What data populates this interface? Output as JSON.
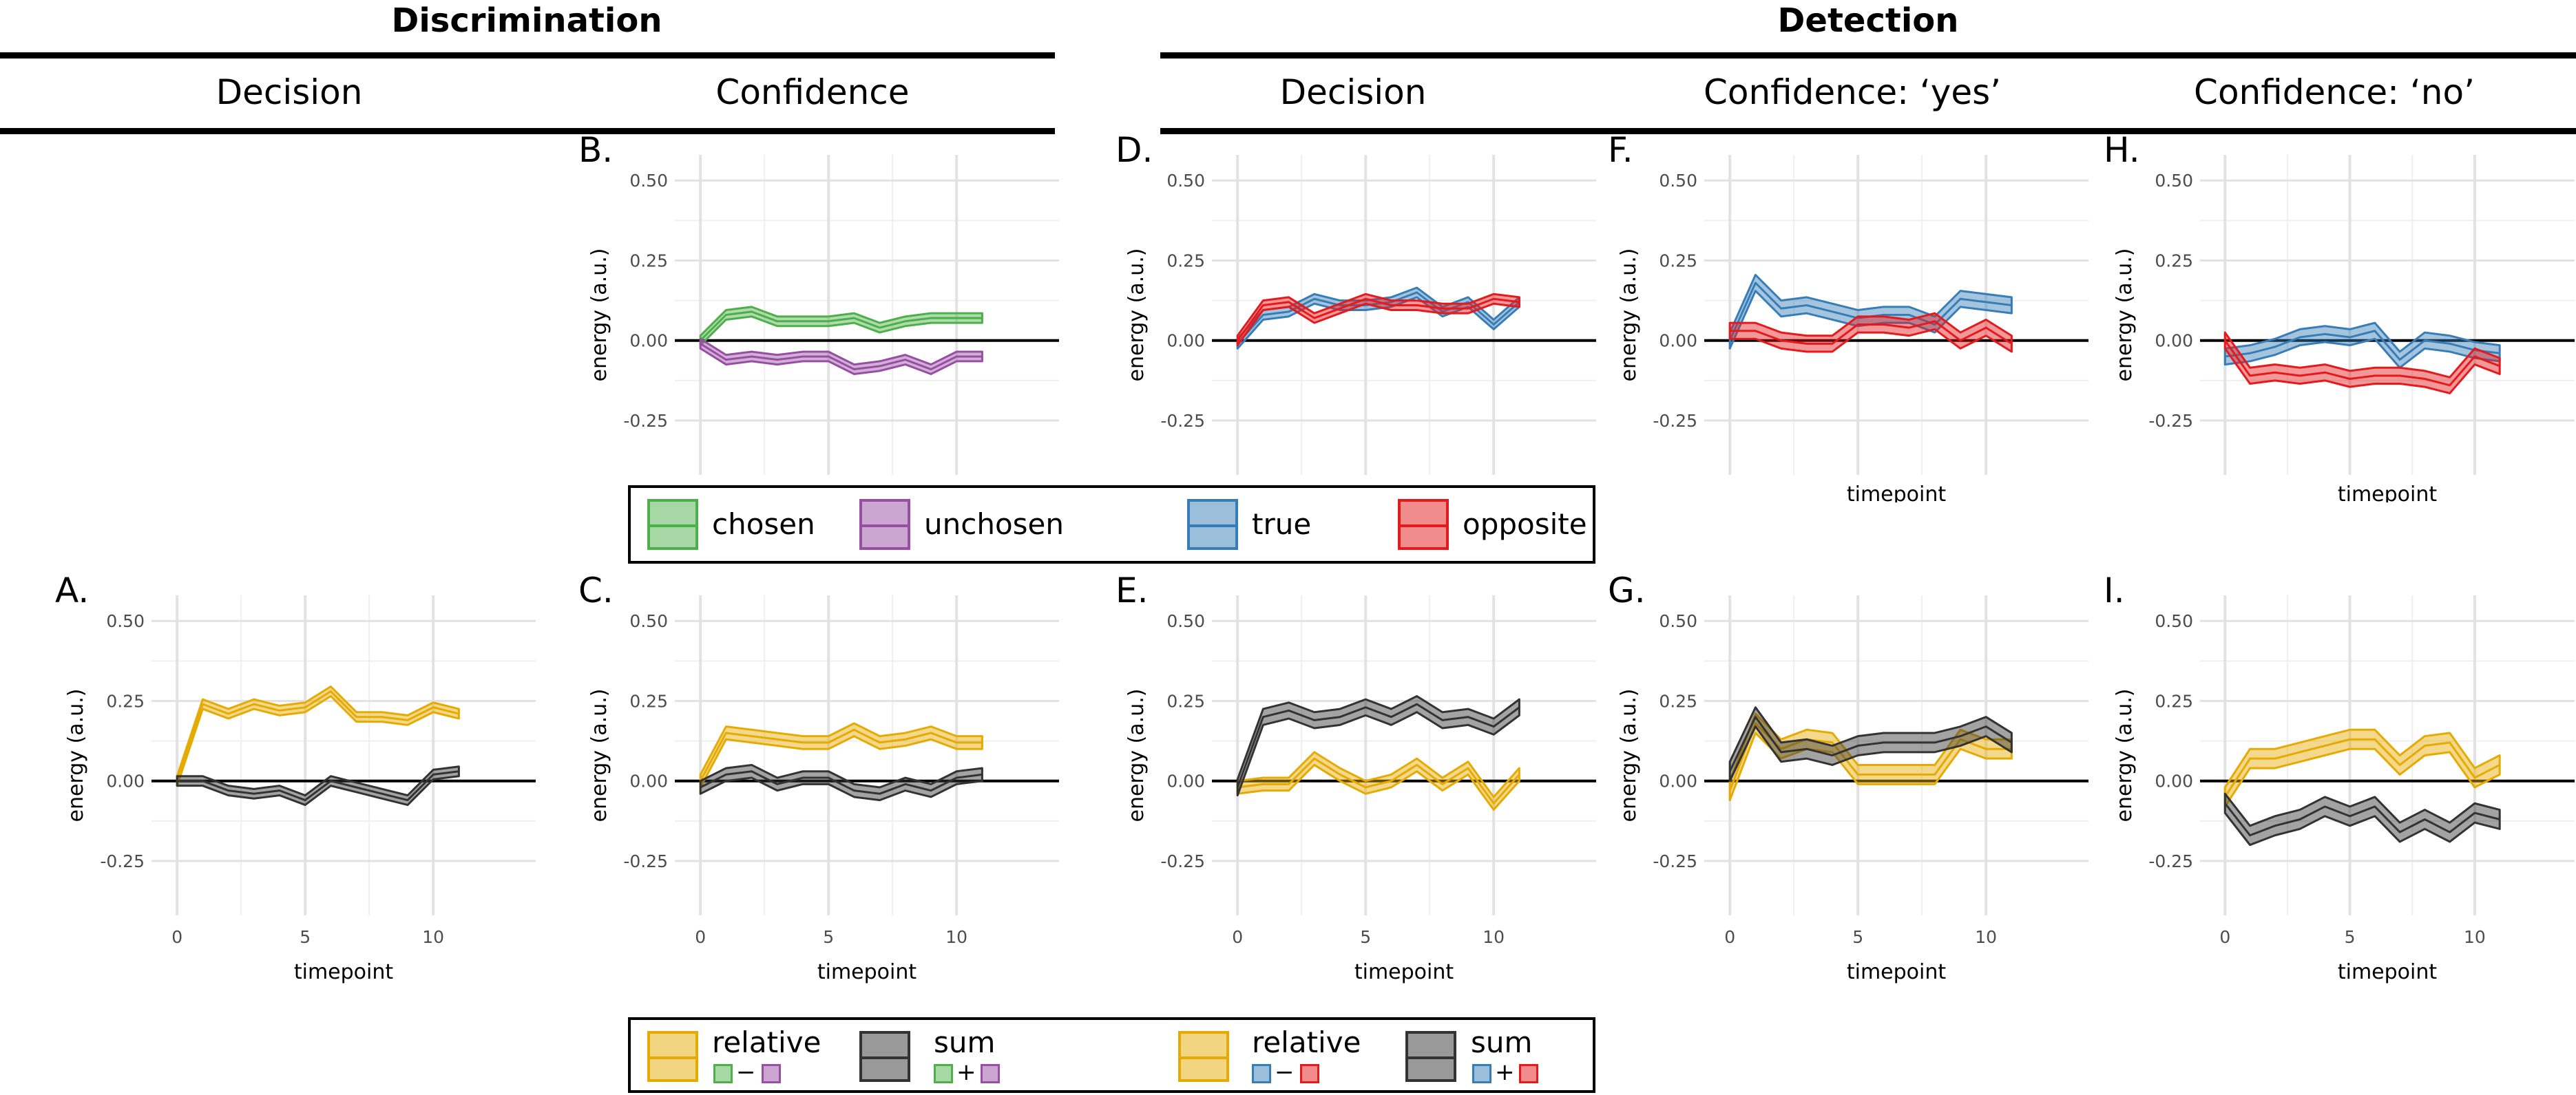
{
  "headers": {
    "discrimination": "Discrimination",
    "detection": "Detection",
    "columns": [
      "Decision",
      "Confidence",
      "Decision",
      "Confidence: ‘yes’",
      "Confidence: ‘no’"
    ]
  },
  "colors": {
    "chosen": "#4daf4a",
    "unchosen": "#984ea3",
    "true": "#377eb8",
    "opposite": "#e41a1c",
    "relative": "#e6ab02",
    "sum": "#333333"
  },
  "legends": {
    "top": [
      {
        "label": "chosen",
        "color": "#4daf4a"
      },
      {
        "label": "unchosen",
        "color": "#984ea3"
      },
      {
        "label": "true",
        "color": "#377eb8"
      },
      {
        "label": "opposite",
        "color": "#e41a1c"
      }
    ],
    "bottom": [
      {
        "label": "relative",
        "color": "#e6ab02",
        "formula": {
          "left": "#4daf4a",
          "op": "−",
          "right": "#984ea3"
        }
      },
      {
        "label": "sum",
        "color": "#333333",
        "formula": {
          "left": "#4daf4a",
          "op": "+",
          "right": "#984ea3"
        }
      },
      {
        "label": "relative",
        "color": "#e6ab02",
        "formula": {
          "left": "#377eb8",
          "op": "−",
          "right": "#e41a1c"
        }
      },
      {
        "label": "sum",
        "color": "#333333",
        "formula": {
          "left": "#377eb8",
          "op": "+",
          "right": "#e41a1c"
        }
      }
    ]
  },
  "chart_data": [
    {
      "panel": "A.",
      "type": "line",
      "ylabel": "energy (a.u.)",
      "xlabel": "timepoint",
      "ylim": [
        -0.42,
        0.58
      ],
      "xlim": [
        -1,
        14
      ],
      "yticks": [
        -0.25,
        0,
        0.25,
        0.5
      ],
      "ytick_labels": [
        "-0.25",
        "0.00",
        "0.25",
        "0.50"
      ],
      "xticks": [
        0,
        5,
        10
      ],
      "xtick_labels": [
        "0",
        "5",
        "10"
      ],
      "hline": 0,
      "show_x_axis": true,
      "series": [
        {
          "key": "relative",
          "x": [
            0,
            1,
            2,
            3,
            4,
            5,
            6,
            7,
            8,
            9,
            10,
            11
          ],
          "values": [
            0.0,
            0.24,
            0.21,
            0.24,
            0.22,
            0.23,
            0.28,
            0.2,
            0.2,
            0.19,
            0.23,
            0.21
          ],
          "band": 0.015
        },
        {
          "key": "sum",
          "x": [
            0,
            1,
            2,
            3,
            4,
            5,
            6,
            7,
            8,
            9,
            10,
            11
          ],
          "values": [
            0.0,
            0.0,
            -0.03,
            -0.04,
            -0.03,
            -0.06,
            0.0,
            -0.02,
            -0.04,
            -0.06,
            0.02,
            0.03
          ],
          "band": 0.015
        }
      ]
    },
    {
      "panel": "B.",
      "type": "line",
      "ylabel": "energy (a.u.)",
      "xlabel": "",
      "ylim": [
        -0.42,
        0.58
      ],
      "xlim": [
        -1,
        14
      ],
      "yticks": [
        -0.25,
        0,
        0.25,
        0.5
      ],
      "ytick_labels": [
        "-0.25",
        "0.00",
        "0.25",
        "0.50"
      ],
      "xticks": [
        0,
        5,
        10
      ],
      "xtick_labels": [
        "",
        "",
        ""
      ],
      "hline": 0,
      "show_x_axis": false,
      "series": [
        {
          "key": "chosen",
          "x": [
            0,
            1,
            2,
            3,
            4,
            5,
            6,
            7,
            8,
            9,
            10,
            11
          ],
          "values": [
            0.0,
            0.08,
            0.09,
            0.06,
            0.06,
            0.06,
            0.07,
            0.04,
            0.06,
            0.07,
            0.07,
            0.07
          ],
          "band": 0.015
        },
        {
          "key": "unchosen",
          "x": [
            0,
            1,
            2,
            3,
            4,
            5,
            6,
            7,
            8,
            9,
            10,
            11
          ],
          "values": [
            -0.01,
            -0.06,
            -0.05,
            -0.06,
            -0.05,
            -0.05,
            -0.09,
            -0.08,
            -0.06,
            -0.09,
            -0.05,
            -0.05
          ],
          "band": 0.015
        }
      ]
    },
    {
      "panel": "C.",
      "type": "line",
      "ylabel": "energy (a.u.)",
      "xlabel": "timepoint",
      "ylim": [
        -0.42,
        0.58
      ],
      "xlim": [
        -1,
        14
      ],
      "yticks": [
        -0.25,
        0,
        0.25,
        0.5
      ],
      "ytick_labels": [
        "-0.25",
        "0.00",
        "0.25",
        "0.50"
      ],
      "xticks": [
        0,
        5,
        10
      ],
      "xtick_labels": [
        "0",
        "5",
        "10"
      ],
      "hline": 0,
      "show_x_axis": true,
      "series": [
        {
          "key": "relative",
          "x": [
            0,
            1,
            2,
            3,
            4,
            5,
            6,
            7,
            8,
            9,
            10,
            11
          ],
          "values": [
            0.0,
            0.15,
            0.14,
            0.13,
            0.12,
            0.12,
            0.16,
            0.12,
            0.13,
            0.15,
            0.12,
            0.12
          ],
          "band": 0.02
        },
        {
          "key": "sum",
          "x": [
            0,
            1,
            2,
            3,
            4,
            5,
            6,
            7,
            8,
            9,
            10,
            11
          ],
          "values": [
            -0.02,
            0.02,
            0.03,
            -0.01,
            0.01,
            0.01,
            -0.03,
            -0.04,
            -0.01,
            -0.03,
            0.01,
            0.02
          ],
          "band": 0.02
        }
      ]
    },
    {
      "panel": "D.",
      "type": "line",
      "ylabel": "energy (a.u.)",
      "xlabel": "",
      "ylim": [
        -0.42,
        0.58
      ],
      "xlim": [
        -1,
        14
      ],
      "yticks": [
        -0.25,
        0,
        0.25,
        0.5
      ],
      "ytick_labels": [
        "-0.25",
        "0.00",
        "0.25",
        "0.50"
      ],
      "xticks": [
        0,
        5,
        10
      ],
      "xtick_labels": [
        "",
        "",
        ""
      ],
      "hline": 0,
      "show_x_axis": false,
      "series": [
        {
          "key": "true",
          "x": [
            0,
            1,
            2,
            3,
            4,
            5,
            6,
            7,
            8,
            9,
            10,
            11
          ],
          "values": [
            -0.01,
            0.08,
            0.09,
            0.13,
            0.11,
            0.11,
            0.12,
            0.15,
            0.09,
            0.12,
            0.05,
            0.12
          ],
          "band": 0.015
        },
        {
          "key": "opposite",
          "x": [
            0,
            1,
            2,
            3,
            4,
            5,
            6,
            7,
            8,
            9,
            10,
            11
          ],
          "values": [
            0.0,
            0.11,
            0.12,
            0.07,
            0.1,
            0.13,
            0.11,
            0.11,
            0.1,
            0.1,
            0.13,
            0.12
          ],
          "band": 0.015
        }
      ]
    },
    {
      "panel": "E.",
      "type": "line",
      "ylabel": "energy (a.u.)",
      "xlabel": "timepoint",
      "ylim": [
        -0.42,
        0.58
      ],
      "xlim": [
        -1,
        14
      ],
      "yticks": [
        -0.25,
        0,
        0.25,
        0.5
      ],
      "ytick_labels": [
        "-0.25",
        "0.00",
        "0.25",
        "0.50"
      ],
      "xticks": [
        0,
        5,
        10
      ],
      "xtick_labels": [
        "0",
        "5",
        "10"
      ],
      "hline": 0,
      "show_x_axis": true,
      "series": [
        {
          "key": "relative",
          "x": [
            0,
            1,
            2,
            3,
            4,
            5,
            6,
            7,
            8,
            9,
            10,
            11
          ],
          "values": [
            -0.02,
            -0.01,
            -0.01,
            0.07,
            0.02,
            -0.02,
            0.0,
            0.05,
            -0.01,
            0.04,
            -0.07,
            0.02
          ],
          "band": 0.02
        },
        {
          "key": "sum",
          "x": [
            0,
            1,
            2,
            3,
            4,
            5,
            6,
            7,
            8,
            9,
            10,
            11
          ],
          "values": [
            -0.02,
            0.2,
            0.22,
            0.19,
            0.2,
            0.23,
            0.2,
            0.24,
            0.19,
            0.2,
            0.17,
            0.23
          ],
          "band": 0.025
        }
      ]
    },
    {
      "panel": "F.",
      "type": "line",
      "ylabel": "energy (a.u.)",
      "xlabel": "timepoint",
      "ylim": [
        -0.42,
        0.58
      ],
      "xlim": [
        -1,
        14
      ],
      "yticks": [
        -0.25,
        0,
        0.25,
        0.5
      ],
      "ytick_labels": [
        "-0.25",
        "0.00",
        "0.25",
        "0.50"
      ],
      "xticks": [
        0,
        5,
        10
      ],
      "xtick_labels": [
        "",
        "",
        ""
      ],
      "hline": 0,
      "show_x_axis": true,
      "series": [
        {
          "key": "true",
          "x": [
            0,
            1,
            2,
            3,
            4,
            5,
            6,
            7,
            8,
            9,
            10,
            11
          ],
          "values": [
            0.0,
            0.18,
            0.1,
            0.11,
            0.09,
            0.07,
            0.08,
            0.08,
            0.05,
            0.13,
            0.12,
            0.11
          ],
          "band": 0.025
        },
        {
          "key": "opposite",
          "x": [
            0,
            1,
            2,
            3,
            4,
            5,
            6,
            7,
            8,
            9,
            10,
            11
          ],
          "values": [
            0.03,
            0.03,
            0.0,
            -0.01,
            -0.01,
            0.05,
            0.05,
            0.04,
            0.06,
            0.0,
            0.04,
            -0.01
          ],
          "band": 0.025
        }
      ]
    },
    {
      "panel": "G.",
      "type": "line",
      "ylabel": "energy (a.u.)",
      "xlabel": "timepoint",
      "ylim": [
        -0.42,
        0.58
      ],
      "xlim": [
        -1,
        14
      ],
      "yticks": [
        -0.25,
        0,
        0.25,
        0.5
      ],
      "ytick_labels": [
        "-0.25",
        "0.00",
        "0.25",
        "0.50"
      ],
      "xticks": [
        0,
        5,
        10
      ],
      "xtick_labels": [
        "0",
        "5",
        "10"
      ],
      "hline": 0,
      "show_x_axis": true,
      "series": [
        {
          "key": "relative",
          "x": [
            0,
            1,
            2,
            3,
            4,
            5,
            6,
            7,
            8,
            9,
            10,
            11
          ],
          "values": [
            -0.03,
            0.18,
            0.1,
            0.13,
            0.12,
            0.02,
            0.02,
            0.02,
            0.02,
            0.13,
            0.1,
            0.1
          ],
          "band": 0.03
        },
        {
          "key": "sum",
          "x": [
            0,
            1,
            2,
            3,
            4,
            5,
            6,
            7,
            8,
            9,
            10,
            11
          ],
          "values": [
            0.03,
            0.2,
            0.09,
            0.1,
            0.08,
            0.11,
            0.12,
            0.12,
            0.12,
            0.14,
            0.17,
            0.12
          ],
          "band": 0.03
        }
      ]
    },
    {
      "panel": "H.",
      "type": "line",
      "ylabel": "energy (a.u.)",
      "xlabel": "timepoint",
      "ylim": [
        -0.42,
        0.58
      ],
      "xlim": [
        -1,
        14
      ],
      "yticks": [
        -0.25,
        0,
        0.25,
        0.5
      ],
      "ytick_labels": [
        "-0.25",
        "0.00",
        "0.25",
        "0.50"
      ],
      "xticks": [
        0,
        5,
        10
      ],
      "xtick_labels": [
        "",
        "",
        ""
      ],
      "hline": 0,
      "show_x_axis": true,
      "series": [
        {
          "key": "true",
          "x": [
            0,
            1,
            2,
            3,
            4,
            5,
            6,
            7,
            8,
            9,
            10,
            11
          ],
          "values": [
            -0.05,
            -0.04,
            -0.02,
            0.01,
            0.02,
            0.01,
            0.03,
            -0.06,
            0.0,
            -0.01,
            -0.03,
            -0.04
          ],
          "band": 0.025
        },
        {
          "key": "opposite",
          "x": [
            0,
            1,
            2,
            3,
            4,
            5,
            6,
            7,
            8,
            9,
            10,
            11
          ],
          "values": [
            0.0,
            -0.11,
            -0.1,
            -0.11,
            -0.1,
            -0.12,
            -0.11,
            -0.11,
            -0.12,
            -0.14,
            -0.05,
            -0.08
          ],
          "band": 0.025
        }
      ]
    },
    {
      "panel": "I.",
      "type": "line",
      "ylabel": "energy (a.u.)",
      "xlabel": "timepoint",
      "ylim": [
        -0.42,
        0.58
      ],
      "xlim": [
        -1,
        14
      ],
      "yticks": [
        -0.25,
        0,
        0.25,
        0.5
      ],
      "ytick_labels": [
        "-0.25",
        "0.00",
        "0.25",
        "0.50"
      ],
      "xticks": [
        0,
        5,
        10
      ],
      "xtick_labels": [
        "0",
        "5",
        "10"
      ],
      "hline": 0,
      "show_x_axis": true,
      "series": [
        {
          "key": "relative",
          "x": [
            0,
            1,
            2,
            3,
            4,
            5,
            6,
            7,
            8,
            9,
            10,
            11
          ],
          "values": [
            -0.05,
            0.07,
            0.07,
            0.09,
            0.11,
            0.13,
            0.13,
            0.05,
            0.11,
            0.12,
            0.01,
            0.05
          ],
          "band": 0.03
        },
        {
          "key": "sum",
          "x": [
            0,
            1,
            2,
            3,
            4,
            5,
            6,
            7,
            8,
            9,
            10,
            11
          ],
          "values": [
            -0.07,
            -0.17,
            -0.14,
            -0.12,
            -0.08,
            -0.11,
            -0.08,
            -0.16,
            -0.12,
            -0.16,
            -0.1,
            -0.12
          ],
          "band": 0.03
        }
      ]
    }
  ]
}
